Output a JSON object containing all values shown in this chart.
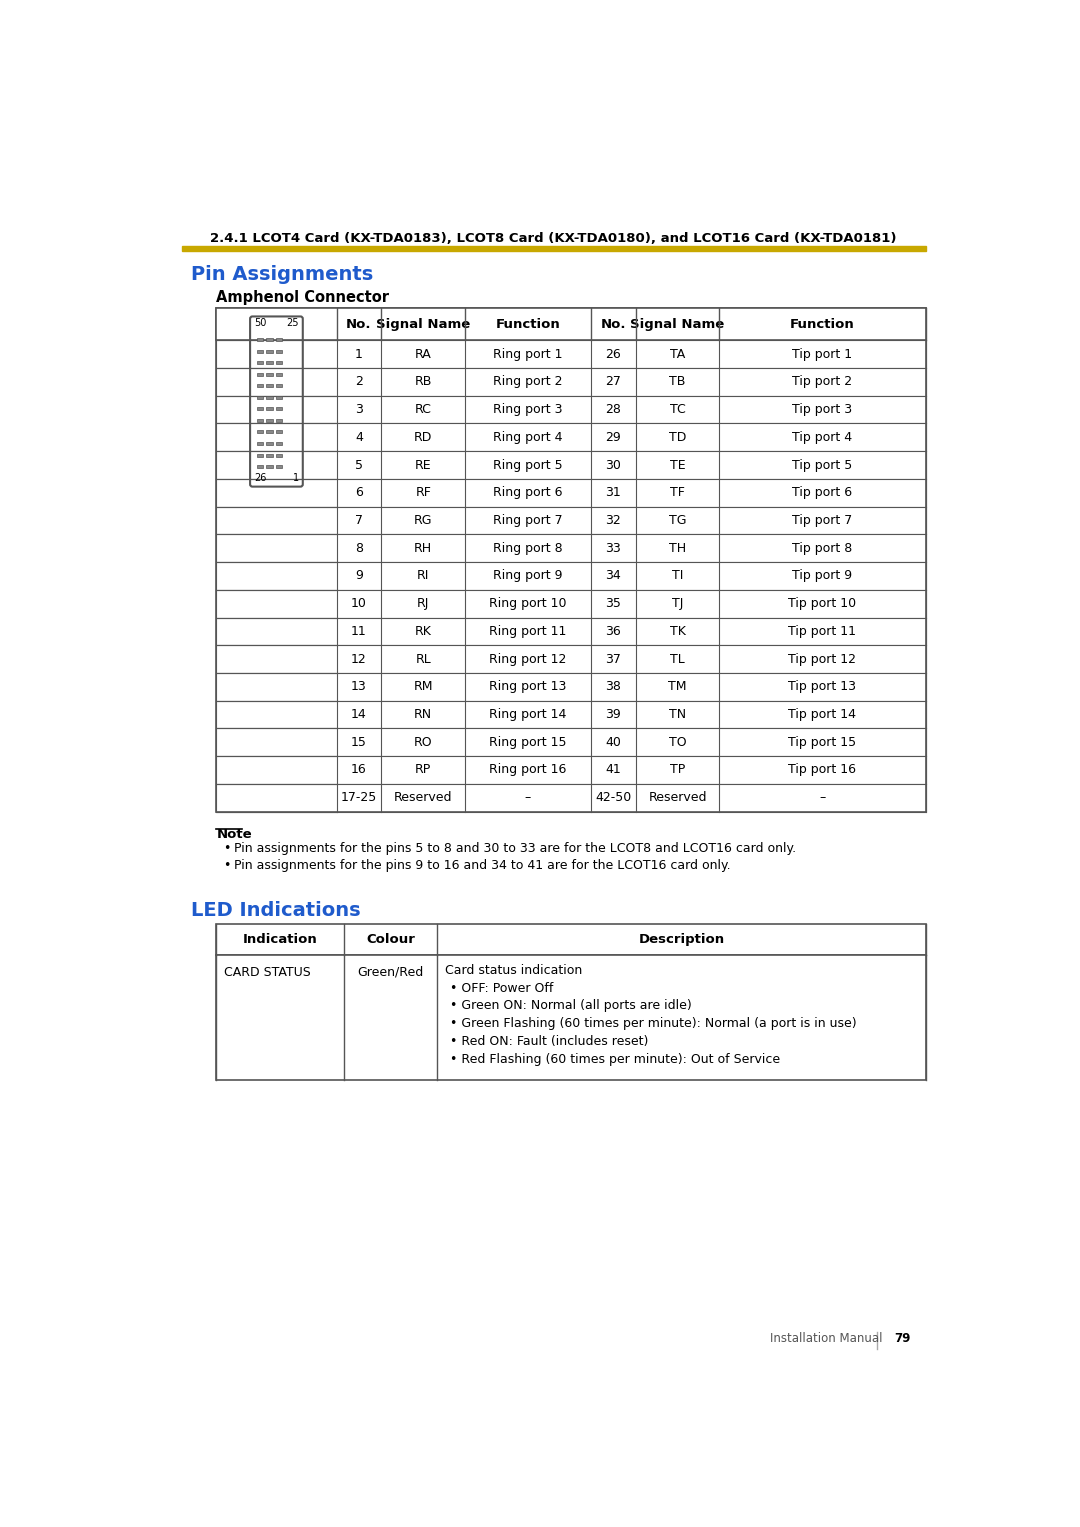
{
  "page_title": "2.4.1 LCOT4 Card (KX-TDA0183), LCOT8 Card (KX-TDA0180), and LCOT16 Card (KX-TDA0181)",
  "section_title": "Pin Assignments",
  "subsection_title": "Amphenol Connector",
  "header_color": "#C8A800",
  "section_title_color": "#1F5BCC",
  "led_title_color": "#1F5BCC",
  "table_border_color": "#555555",
  "background_color": "#FFFFFF",
  "pin_table_headers": [
    "No.",
    "Signal Name",
    "Function",
    "No.",
    "Signal Name",
    "Function"
  ],
  "pin_rows": [
    [
      "1",
      "RA",
      "Ring port 1",
      "26",
      "TA",
      "Tip port 1"
    ],
    [
      "2",
      "RB",
      "Ring port 2",
      "27",
      "TB",
      "Tip port 2"
    ],
    [
      "3",
      "RC",
      "Ring port 3",
      "28",
      "TC",
      "Tip port 3"
    ],
    [
      "4",
      "RD",
      "Ring port 4",
      "29",
      "TD",
      "Tip port 4"
    ],
    [
      "5",
      "RE",
      "Ring port 5",
      "30",
      "TE",
      "Tip port 5"
    ],
    [
      "6",
      "RF",
      "Ring port 6",
      "31",
      "TF",
      "Tip port 6"
    ],
    [
      "7",
      "RG",
      "Ring port 7",
      "32",
      "TG",
      "Tip port 7"
    ],
    [
      "8",
      "RH",
      "Ring port 8",
      "33",
      "TH",
      "Tip port 8"
    ],
    [
      "9",
      "RI",
      "Ring port 9",
      "34",
      "TI",
      "Tip port 9"
    ],
    [
      "10",
      "RJ",
      "Ring port 10",
      "35",
      "TJ",
      "Tip port 10"
    ],
    [
      "11",
      "RK",
      "Ring port 11",
      "36",
      "TK",
      "Tip port 11"
    ],
    [
      "12",
      "RL",
      "Ring port 12",
      "37",
      "TL",
      "Tip port 12"
    ],
    [
      "13",
      "RM",
      "Ring port 13",
      "38",
      "TM",
      "Tip port 13"
    ],
    [
      "14",
      "RN",
      "Ring port 14",
      "39",
      "TN",
      "Tip port 14"
    ],
    [
      "15",
      "RO",
      "Ring port 15",
      "40",
      "TO",
      "Tip port 15"
    ],
    [
      "16",
      "RP",
      "Ring port 16",
      "41",
      "TP",
      "Tip port 16"
    ],
    [
      "17-25",
      "Reserved",
      "–",
      "42-50",
      "Reserved",
      "–"
    ]
  ],
  "note_title": "Note",
  "note_lines": [
    "Pin assignments for the pins 5 to 8 and 30 to 33 are for the LCOT8 and LCOT16 card only.",
    "Pin assignments for the pins 9 to 16 and 34 to 41 are for the LCOT16 card only."
  ],
  "led_section_title": "LED Indications",
  "led_table_headers": [
    "Indication",
    "Colour",
    "Description"
  ],
  "led_rows": [
    [
      "CARD STATUS",
      "Green/Red",
      "Card status indication\n• OFF: Power Off\n• Green ON: Normal (all ports are idle)\n• Green Flashing (60 times per minute): Normal (a port is in use)\n• Red ON: Fault (includes reset)\n• Red Flashing (60 times per minute): Out of Service"
    ]
  ],
  "footer_text": "Installation Manual",
  "footer_page": "79"
}
